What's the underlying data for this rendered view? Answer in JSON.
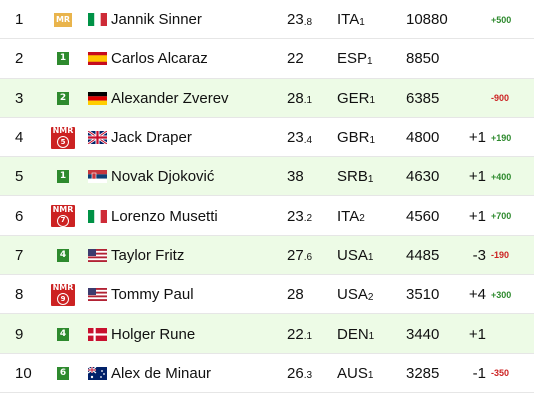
{
  "rows": [
    {
      "rank": "1",
      "badge": {
        "type": "mr",
        "text": "MR",
        "num": ""
      },
      "flag": "ITA",
      "name": "Jannik Sinner",
      "age_int": "23",
      "age_dec": ".8",
      "country": "ITA",
      "country_sub": "1",
      "points": "10880",
      "move": "",
      "diff": "+500",
      "diff_sign": "pos",
      "shaded": false
    },
    {
      "rank": "2",
      "badge": {
        "type": "green",
        "text": "1",
        "num": ""
      },
      "flag": "ESP",
      "name": "Carlos Alcaraz",
      "age_int": "22",
      "age_dec": "",
      "country": "ESP",
      "country_sub": "1",
      "points": "8850",
      "move": "",
      "diff": "",
      "diff_sign": "pos",
      "shaded": false
    },
    {
      "rank": "3",
      "badge": {
        "type": "green",
        "text": "2",
        "num": ""
      },
      "flag": "GER",
      "name": "Alexander Zverev",
      "age_int": "28",
      "age_dec": ".1",
      "country": "GER",
      "country_sub": "1",
      "points": "6385",
      "move": "",
      "diff": "-900",
      "diff_sign": "neg",
      "shaded": true
    },
    {
      "rank": "4",
      "badge": {
        "type": "nmr",
        "text": "NMR",
        "num": "5"
      },
      "flag": "GBR",
      "name": "Jack Draper",
      "age_int": "23",
      "age_dec": ".4",
      "country": "GBR",
      "country_sub": "1",
      "points": "4800",
      "move": "+1",
      "diff": "+190",
      "diff_sign": "pos",
      "shaded": false
    },
    {
      "rank": "5",
      "badge": {
        "type": "green",
        "text": "1",
        "num": ""
      },
      "flag": "SRB",
      "name": "Novak Djoković",
      "age_int": "38",
      "age_dec": "",
      "country": "SRB",
      "country_sub": "1",
      "points": "4630",
      "move": "+1",
      "diff": "+400",
      "diff_sign": "pos",
      "shaded": true
    },
    {
      "rank": "6",
      "badge": {
        "type": "nmr",
        "text": "NMR",
        "num": "7"
      },
      "flag": "ITA",
      "name": "Lorenzo Musetti",
      "age_int": "23",
      "age_dec": ".2",
      "country": "ITA",
      "country_sub": "2",
      "points": "4560",
      "move": "+1",
      "diff": "+700",
      "diff_sign": "pos",
      "shaded": false
    },
    {
      "rank": "7",
      "badge": {
        "type": "green",
        "text": "4",
        "num": ""
      },
      "flag": "USA",
      "name": "Taylor Fritz",
      "age_int": "27",
      "age_dec": ".6",
      "country": "USA",
      "country_sub": "1",
      "points": "4485",
      "move": "-3",
      "diff": "-190",
      "diff_sign": "neg",
      "shaded": true
    },
    {
      "rank": "8",
      "badge": {
        "type": "nmr",
        "text": "NMR",
        "num": "9"
      },
      "flag": "USA",
      "name": "Tommy Paul",
      "age_int": "28",
      "age_dec": "",
      "country": "USA",
      "country_sub": "2",
      "points": "3510",
      "move": "+4",
      "diff": "+300",
      "diff_sign": "pos",
      "shaded": false
    },
    {
      "rank": "9",
      "badge": {
        "type": "green",
        "text": "4",
        "num": ""
      },
      "flag": "DEN",
      "name": "Holger Rune",
      "age_int": "22",
      "age_dec": ".1",
      "country": "DEN",
      "country_sub": "1",
      "points": "3440",
      "move": "+1",
      "diff": "",
      "diff_sign": "pos",
      "shaded": true
    },
    {
      "rank": "10",
      "badge": {
        "type": "green",
        "text": "6",
        "num": ""
      },
      "flag": "AUS",
      "name": "Alex de Minaur",
      "age_int": "26",
      "age_dec": ".3",
      "country": "AUS",
      "country_sub": "1",
      "points": "3285",
      "move": "-1",
      "diff": "-350",
      "diff_sign": "neg",
      "shaded": false
    }
  ],
  "flag_icons": {
    "ITA": "italy-flag-icon",
    "ESP": "spain-flag-icon",
    "GER": "germany-flag-icon",
    "GBR": "uk-flag-icon",
    "SRB": "serbia-flag-icon",
    "USA": "usa-flag-icon",
    "DEN": "denmark-flag-icon",
    "AUS": "australia-flag-icon"
  },
  "colors": {
    "shade": "#edfbe6",
    "positive": "#2e8a2e",
    "negative": "#cc2222",
    "mr_badge": "#e9b44c",
    "nmr_badge": "#cc2222"
  }
}
